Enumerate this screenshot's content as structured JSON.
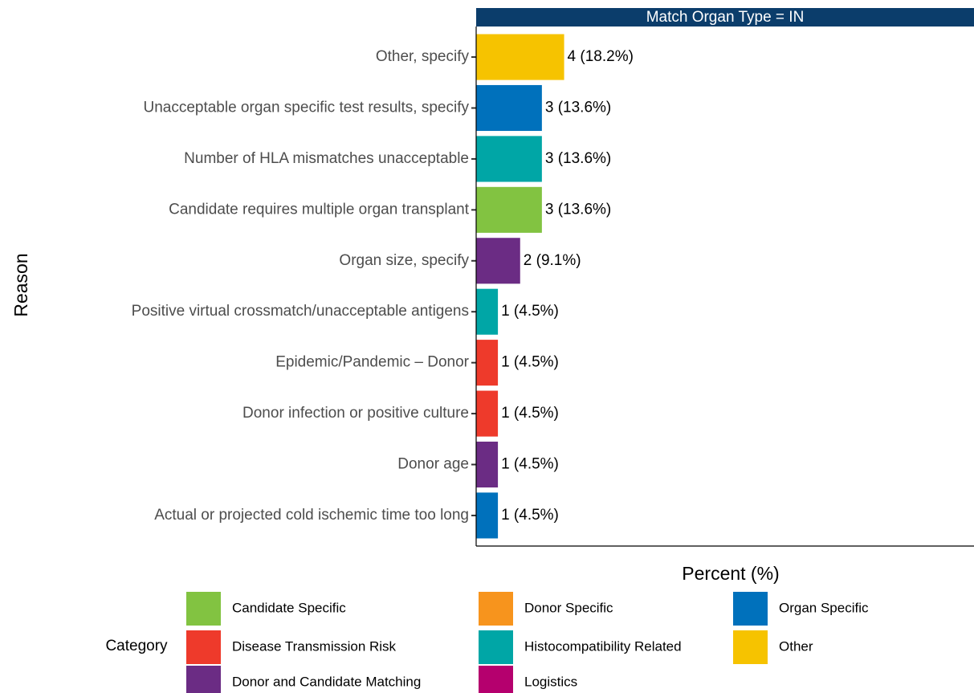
{
  "chart_data": {
    "type": "bar",
    "orientation": "horizontal",
    "facet_title": "Match Organ Type = IN",
    "x_label": "Percent (%)",
    "y_label": "Reason",
    "categories": [
      "Other, specify",
      "Unacceptable organ specific test results, specify",
      "Number of HLA mismatches unacceptable",
      "Candidate requires multiple organ transplant",
      "Organ size, specify",
      "Positive virtual crossmatch/unacceptable antigens",
      "Epidemic/Pandemic – Donor",
      "Donor infection or positive culture",
      "Donor age",
      "Actual or projected cold ischemic time too long"
    ],
    "values": [
      18.2,
      13.6,
      13.6,
      13.6,
      9.1,
      4.5,
      4.5,
      4.5,
      4.5,
      4.5
    ],
    "value_labels": [
      "4 (18.2%)",
      "3 (13.6%)",
      "3 (13.6%)",
      "3 (13.6%)",
      "2 (9.1%)",
      "1 (4.5%)",
      "1 (4.5%)",
      "1 (4.5%)",
      "1 (4.5%)",
      "1 (4.5%)"
    ],
    "colors": [
      "#f6c300",
      "#0071bc",
      "#00a6a6",
      "#82c341",
      "#6b2c84",
      "#00a6a6",
      "#ee3a2b",
      "#ee3a2b",
      "#6b2c84",
      "#0071bc"
    ],
    "xlim": [
      0,
      103
    ],
    "legend": {
      "title": "Category",
      "items": [
        {
          "name": "Candidate Specific",
          "color": "#82c341"
        },
        {
          "name": "Disease Transmission Risk",
          "color": "#ee3a2b"
        },
        {
          "name": "Donor and Candidate Matching",
          "color": "#6b2c84"
        },
        {
          "name": "Donor Specific",
          "color": "#f7941d"
        },
        {
          "name": "Histocompatibility Related",
          "color": "#00a6a6"
        },
        {
          "name": "Logistics",
          "color": "#b5006e"
        },
        {
          "name": "Organ Specific",
          "color": "#0071bc"
        },
        {
          "name": "Other",
          "color": "#f6c300"
        }
      ]
    }
  }
}
